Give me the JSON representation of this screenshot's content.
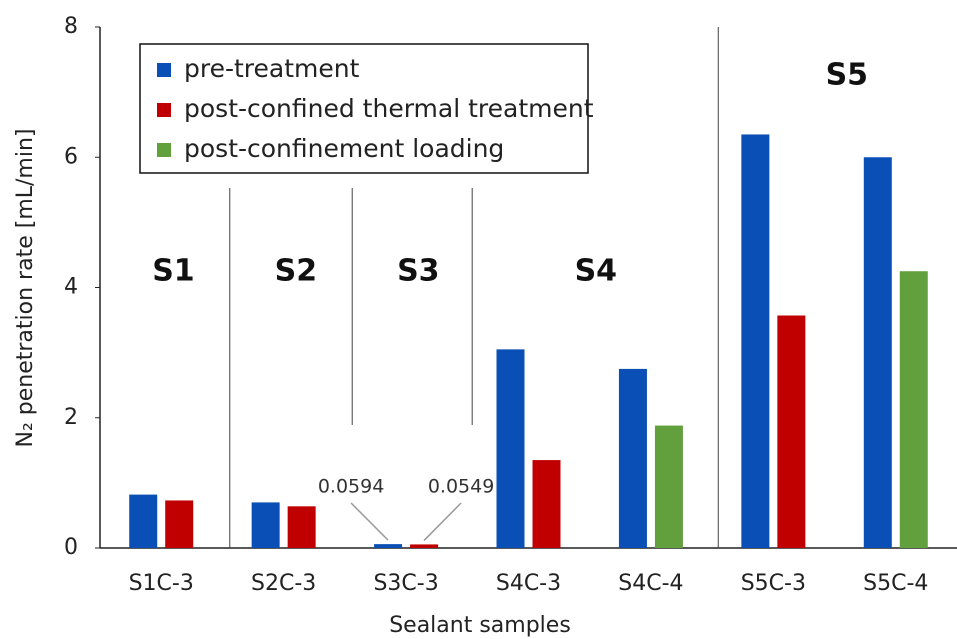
{
  "chart_data": {
    "type": "bar",
    "x_label": "Sealant samples",
    "y_label": "N₂ penetration rate [mL/min]",
    "categories": [
      "S1C-3",
      "S2C-3",
      "S3C-3",
      "S4C-3",
      "S4C-4",
      "S5C-3",
      "S5C-4"
    ],
    "series": [
      {
        "name": "pre-treatment",
        "color": "#0a4fb5",
        "values": [
          0.82,
          0.7,
          0.0594,
          3.05,
          2.75,
          6.35,
          6.0
        ],
        "value_labels": [
          null,
          null,
          "0.0594",
          null,
          null,
          null,
          null
        ]
      },
      {
        "name": "post-confined thermal treatment",
        "color": "#c00000",
        "values": [
          0.73,
          0.64,
          0.0549,
          1.35,
          null,
          3.57,
          null
        ],
        "value_labels": [
          null,
          null,
          "0.0549",
          null,
          null,
          null,
          null
        ]
      },
      {
        "name": "post-confinement loading",
        "color": "#62a03e",
        "values": [
          null,
          null,
          null,
          null,
          1.88,
          null,
          4.25
        ]
      }
    ],
    "groups": [
      "S1",
      "S2",
      "S3",
      "S4",
      "S5"
    ],
    "ylim": [
      0,
      8
    ],
    "yticks": [
      0,
      2,
      4,
      6,
      8
    ],
    "grid": false,
    "legend": "upper left"
  }
}
